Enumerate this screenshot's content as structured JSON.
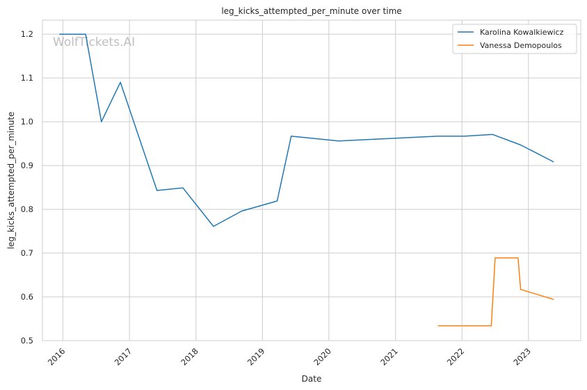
{
  "chart_data": {
    "type": "line",
    "title": "leg_kicks_attempted_per_minute over time",
    "xlabel": "Date",
    "ylabel": "leg_kicks_attempted_per_minute",
    "x_ticks": [
      "2016",
      "2017",
      "2018",
      "2019",
      "2020",
      "2021",
      "2022",
      "2023"
    ],
    "y_ticks": [
      "0.5",
      "0.6",
      "0.7",
      "0.8",
      "0.9",
      "1.0",
      "1.1",
      "1.2"
    ],
    "xlim": [
      "2015-09-11",
      "2023-10-15"
    ],
    "ylim": [
      0.5,
      1.232
    ],
    "grid": true,
    "legend_position": "top-right",
    "watermark": "WolfTickets.AI",
    "series": [
      {
        "name": "Karolina Kowalkiewicz",
        "color": "#1f77b4",
        "points": [
          {
            "x": "2015-12-13",
            "y": 1.2
          },
          {
            "x": "2016-05-05",
            "y": 1.2
          },
          {
            "x": "2016-07-31",
            "y": 1.0
          },
          {
            "x": "2016-11-12",
            "y": 1.09
          },
          {
            "x": "2017-06-01",
            "y": 0.843
          },
          {
            "x": "2017-10-21",
            "y": 0.849
          },
          {
            "x": "2018-04-07",
            "y": 0.761
          },
          {
            "x": "2018-09-09",
            "y": 0.796
          },
          {
            "x": "2019-03-23",
            "y": 0.819
          },
          {
            "x": "2019-06-08",
            "y": 0.967
          },
          {
            "x": "2020-02-23",
            "y": 0.956
          },
          {
            "x": "2021-08-22",
            "y": 0.967
          },
          {
            "x": "2022-01-15",
            "y": 0.967
          },
          {
            "x": "2022-06-18",
            "y": 0.971
          },
          {
            "x": "2022-11-19",
            "y": 0.947
          },
          {
            "x": "2023-05-20",
            "y": 0.908
          }
        ]
      },
      {
        "name": "Vanessa Demopoulos",
        "color": "#ff7f0e",
        "points": [
          {
            "x": "2021-08-21",
            "y": 0.534
          },
          {
            "x": "2022-06-11",
            "y": 0.534
          },
          {
            "x": "2022-07-02",
            "y": 0.689
          },
          {
            "x": "2022-11-05",
            "y": 0.689
          },
          {
            "x": "2022-11-19",
            "y": 0.617
          },
          {
            "x": "2023-05-20",
            "y": 0.594
          }
        ]
      }
    ]
  }
}
